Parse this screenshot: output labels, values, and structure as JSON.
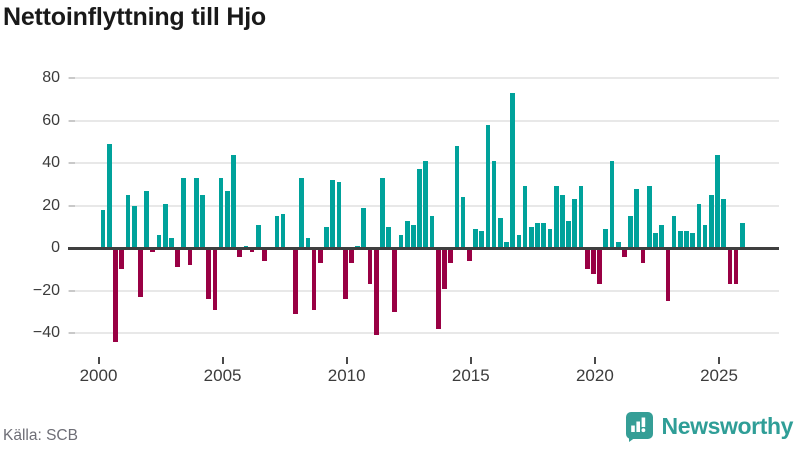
{
  "title": "Nettoinflyttning till Hjo",
  "source": {
    "label": "Källa: SCB"
  },
  "branding": {
    "name": "Newsworthy",
    "icon": "newsworthy-bubble-chart-icon",
    "color": "#2f9e97"
  },
  "colors": {
    "positive": "#00a29b",
    "negative": "#990044",
    "grid": "#e8e8e8",
    "axis": "#3f3f3f",
    "tick_text": "#3c3c3c",
    "muted_text": "#6e6e76",
    "title_text": "#191919"
  },
  "chart_data": {
    "type": "bar",
    "title": "Nettoinflyttning till Hjo",
    "xlabel": "",
    "ylabel": "",
    "x_unit": "quarter",
    "x_range": [
      "2000 Q1",
      "2025 Q4"
    ],
    "ylim": [
      -50,
      85
    ],
    "y_ticks": [
      80,
      60,
      40,
      20,
      0,
      -20,
      -40
    ],
    "y_tick_labels": [
      "80",
      "60",
      "40",
      "20",
      "0",
      "−20",
      "−40"
    ],
    "x_tick_years": [
      "2000",
      "2005",
      "2010",
      "2015",
      "2020",
      "2025"
    ],
    "grid": true,
    "legend": false,
    "series_by_year": [
      {
        "year": 2000,
        "quarters": [
          18,
          49,
          -44,
          -10
        ]
      },
      {
        "year": 2001,
        "quarters": [
          25,
          20,
          -23,
          27
        ]
      },
      {
        "year": 2002,
        "quarters": [
          -2,
          6,
          21,
          5
        ]
      },
      {
        "year": 2003,
        "quarters": [
          -9,
          33,
          -8,
          33
        ]
      },
      {
        "year": 2004,
        "quarters": [
          25,
          -24,
          -29,
          33
        ]
      },
      {
        "year": 2005,
        "quarters": [
          27,
          44,
          -4,
          1
        ]
      },
      {
        "year": 2006,
        "quarters": [
          -2,
          11,
          -6,
          0
        ]
      },
      {
        "year": 2007,
        "quarters": [
          15,
          16,
          0,
          -31
        ]
      },
      {
        "year": 2008,
        "quarters": [
          33,
          5,
          -29,
          -7
        ]
      },
      {
        "year": 2009,
        "quarters": [
          10,
          32,
          31,
          -24
        ]
      },
      {
        "year": 2010,
        "quarters": [
          -7,
          1,
          19,
          -17
        ]
      },
      {
        "year": 2011,
        "quarters": [
          -41,
          33,
          10,
          -30
        ]
      },
      {
        "year": 2012,
        "quarters": [
          6,
          13,
          11,
          37
        ]
      },
      {
        "year": 2013,
        "quarters": [
          41,
          15,
          -38,
          -19
        ]
      },
      {
        "year": 2014,
        "quarters": [
          -7,
          48,
          24,
          -6
        ]
      },
      {
        "year": 2015,
        "quarters": [
          9,
          8,
          58,
          41
        ]
      },
      {
        "year": 2016,
        "quarters": [
          14,
          3,
          73,
          6
        ]
      },
      {
        "year": 2017,
        "quarters": [
          29,
          10,
          12,
          12
        ]
      },
      {
        "year": 2018,
        "quarters": [
          9,
          29,
          25,
          13
        ]
      },
      {
        "year": 2019,
        "quarters": [
          23,
          29,
          -10,
          -12
        ]
      },
      {
        "year": 2020,
        "quarters": [
          -17,
          9,
          41,
          3
        ]
      },
      {
        "year": 2021,
        "quarters": [
          -4,
          15,
          28,
          -7
        ]
      },
      {
        "year": 2022,
        "quarters": [
          29,
          7,
          11,
          -25
        ]
      },
      {
        "year": 2023,
        "quarters": [
          15,
          8,
          8,
          7
        ]
      },
      {
        "year": 2024,
        "quarters": [
          21,
          11,
          25,
          44
        ]
      },
      {
        "year": 2025,
        "quarters": [
          23,
          -17,
          -17,
          12
        ]
      }
    ]
  }
}
